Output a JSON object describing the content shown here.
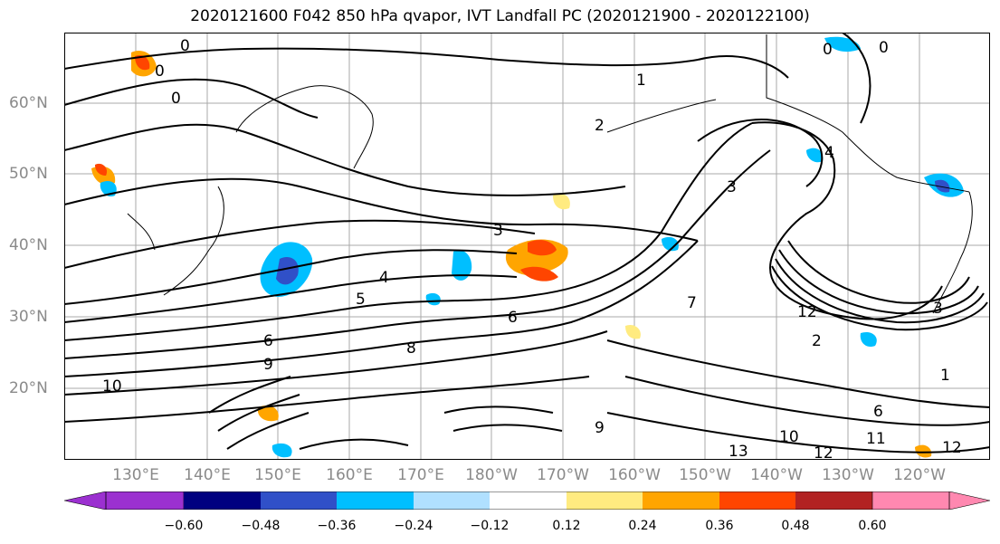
{
  "title": "2020121600 F042 850 hPa qvapor, IVT Landfall PC (2020121900 - 2020122100)",
  "lat_labels": [
    "60°N",
    "50°N",
    "40°N",
    "30°N",
    "20°N"
  ],
  "lon_labels": [
    "130°E",
    "140°E",
    "150°E",
    "160°E",
    "170°E",
    "180°W",
    "170°W",
    "160°W",
    "150°W",
    "140°W",
    "130°W",
    "120°W"
  ],
  "contour_labels": [
    "0",
    "0",
    "0",
    "0",
    "0",
    "1",
    "2",
    "3",
    "3",
    "4",
    "4",
    "5",
    "6",
    "6",
    "7",
    "8",
    "9",
    "9",
    "10",
    "10",
    "11",
    "12",
    "12",
    "12",
    "13",
    "2",
    "1",
    "6",
    "3"
  ],
  "colorbar": {
    "ticks": [
      "−0.60",
      "−0.48",
      "−0.36",
      "−0.24",
      "−0.12",
      "0.12",
      "0.24",
      "0.36",
      "0.48",
      "0.60"
    ],
    "colors": [
      "#9b30d0",
      "#000080",
      "#3050c8",
      "#00bfff",
      "#b0e0ff",
      "#ffffff",
      "#ffeb80",
      "#ffa500",
      "#ff4500",
      "#b22222",
      "#ff88b0"
    ]
  }
}
